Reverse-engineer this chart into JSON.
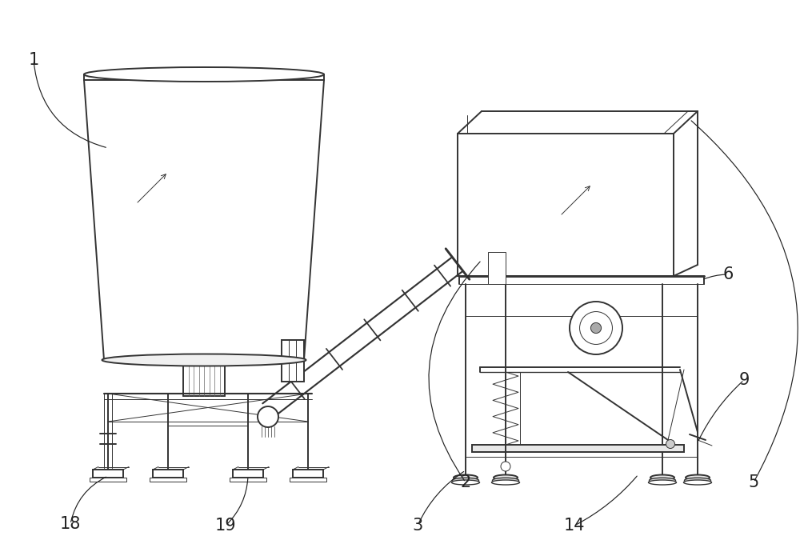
{
  "background_color": "#ffffff",
  "line_color": "#333333",
  "lw": 1.4,
  "tlw": 0.7,
  "label_fontsize": 15,
  "label_color": "#222222",
  "figsize": [
    10.0,
    6.85
  ],
  "dpi": 100
}
